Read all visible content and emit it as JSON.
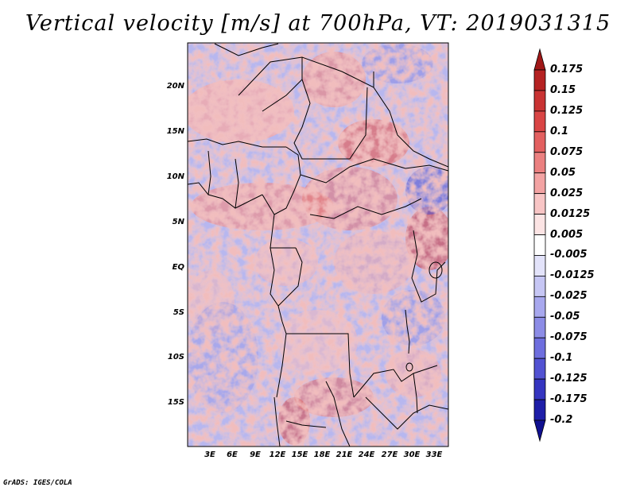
{
  "title": "Vertical velocity [m/s] at 700hPa, VT: 2019031315",
  "credit": "GrADS: IGES/COLA",
  "lat_labels": [
    "20N",
    "15N",
    "10N",
    "5N",
    "EQ",
    "5S",
    "10S",
    "15S"
  ],
  "lon_labels": [
    "3E",
    "6E",
    "9E",
    "12E",
    "15E",
    "18E",
    "21E",
    "24E",
    "27E",
    "30E",
    "33E"
  ],
  "colorbar": {
    "levels": [
      "0.175",
      "0.15",
      "0.125",
      "0.1",
      "0.075",
      "0.05",
      "0.025",
      "0.0125",
      "0.005",
      "-0.005",
      "-0.0125",
      "-0.025",
      "-0.05",
      "-0.075",
      "-0.1",
      "-0.125",
      "-0.175",
      "-0.2"
    ],
    "colors": [
      "#a01818",
      "#b52222",
      "#c93333",
      "#d94545",
      "#e36060",
      "#eb8080",
      "#f3a3a3",
      "#f8c5c5",
      "#fce4e4",
      "#ffffff",
      "#e3e3fa",
      "#c6c6f4",
      "#a8a8ee",
      "#8c8ce6",
      "#6e6ede",
      "#5252d2",
      "#3535c0",
      "#1e1ea8",
      "#101090"
    ]
  },
  "colors": {
    "positive": "#d94545",
    "negative": "#6e6ede",
    "neutral": "#ffffff"
  }
}
